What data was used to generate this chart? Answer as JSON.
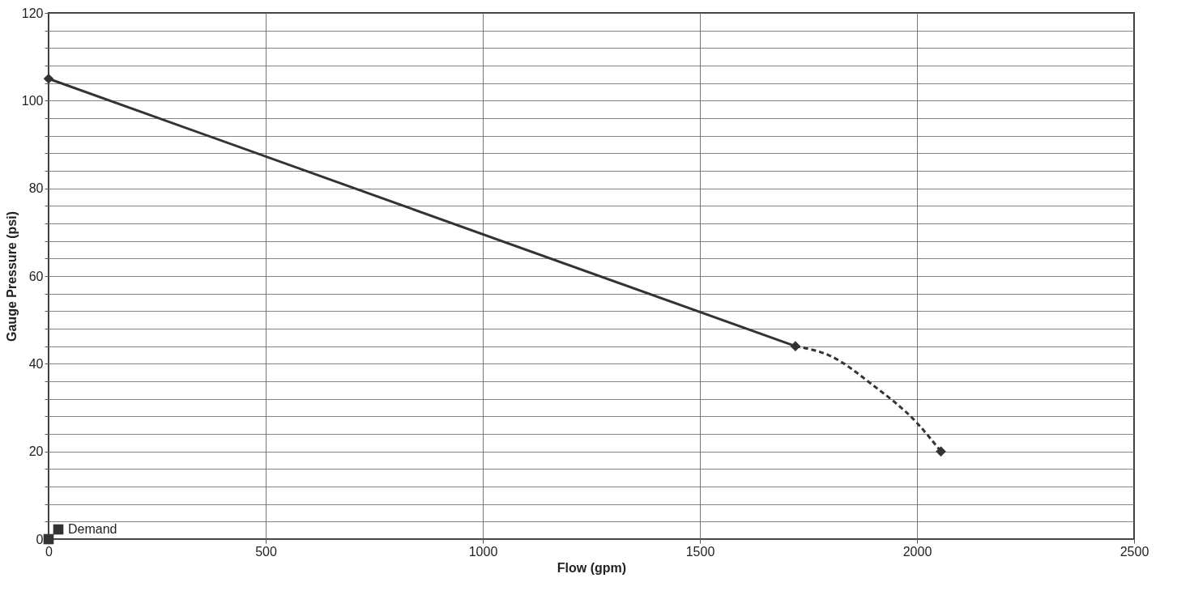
{
  "chart_data": {
    "type": "line",
    "xlabel": "Flow (gpm)",
    "ylabel": "Gauge Pressure (psi)",
    "xlim": [
      0,
      2500
    ],
    "xticks": [
      0,
      500,
      1000,
      1500,
      2000,
      2500
    ],
    "ylim": [
      0,
      120
    ],
    "yticks": [
      0,
      {
        "value": 4,
        "label": null
      },
      {
        "value": 8,
        "label": null
      },
      {
        "value": 12,
        "label": null
      },
      {
        "value": 16,
        "label": null
      },
      20,
      {
        "value": 24,
        "label": null
      },
      {
        "value": 28,
        "label": null
      },
      {
        "value": 32,
        "label": null
      },
      {
        "value": 36,
        "label": null
      },
      40,
      {
        "value": 44,
        "label": null
      },
      {
        "value": 48,
        "label": null
      },
      {
        "value": 52,
        "label": null
      },
      {
        "value": 56,
        "label": null
      },
      60,
      {
        "value": 64,
        "label": null
      },
      {
        "value": 68,
        "label": null
      },
      {
        "value": 72,
        "label": null
      },
      {
        "value": 76,
        "label": null
      },
      80,
      {
        "value": 84,
        "label": null
      },
      {
        "value": 88,
        "label": null
      },
      {
        "value": 92,
        "label": null
      },
      {
        "value": 96,
        "label": null
      },
      100,
      {
        "value": 104,
        "label": null
      },
      {
        "value": 108,
        "label": null
      },
      {
        "value": 112,
        "label": null
      },
      {
        "value": 116,
        "label": null
      },
      120
    ],
    "grid": true,
    "legend": "bottom left",
    "series": [
      {
        "color": "#333333",
        "x": [
          0,
          1720
        ],
        "values": [
          105,
          44
        ],
        "marker": "diamond",
        "line_style": "solid"
      },
      {
        "color": "#333333",
        "x": [
          1720,
          1800,
          1900,
          2000,
          2055
        ],
        "values": [
          44,
          41.8,
          35,
          26.5,
          20
        ],
        "marker": "none",
        "line_style": "dashed"
      },
      {
        "type": "scatter",
        "color": "#333333",
        "x": [
          2055
        ],
        "values": [
          20
        ],
        "marker": "diamond"
      },
      {
        "type": "scatter",
        "name": "Demand",
        "color": "#333333",
        "x": [
          0
        ],
        "values": [
          0
        ],
        "marker": "square"
      }
    ]
  }
}
